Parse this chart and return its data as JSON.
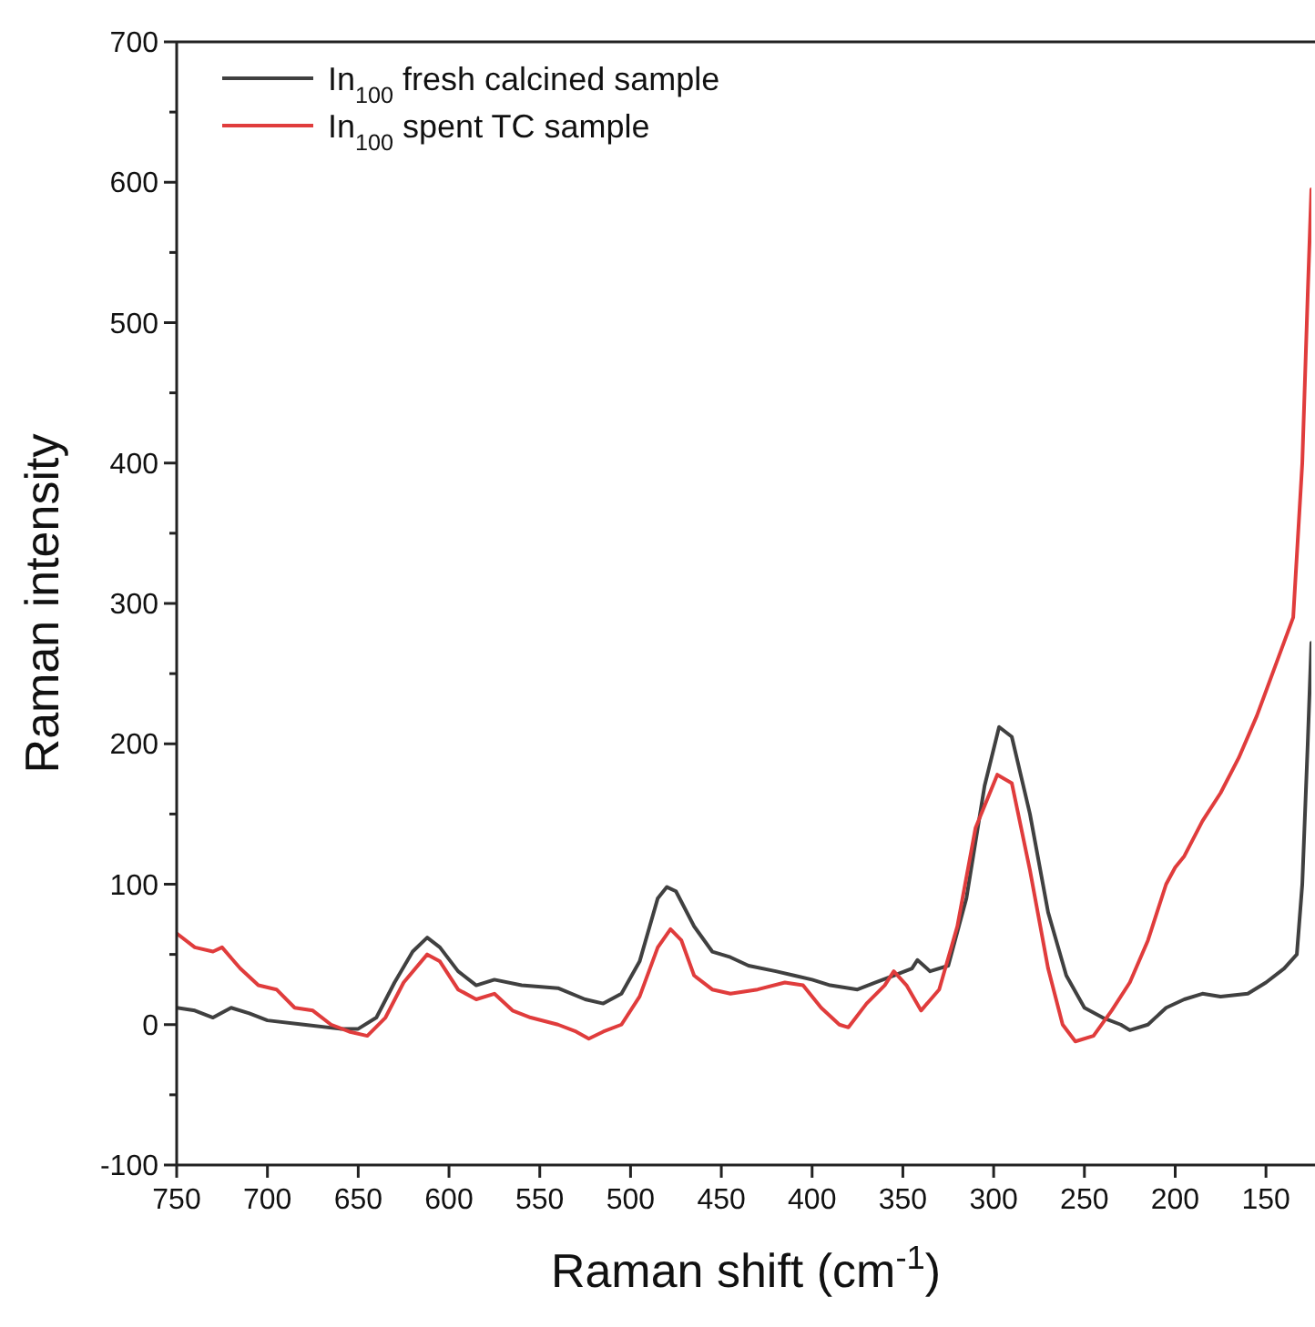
{
  "chart_data": {
    "type": "line",
    "xlabel": "Raman shift (cm$^{-1}$)",
    "ylabel": "Raman intensity",
    "xlim": [
      750,
      125
    ],
    "xticks": [
      750,
      700,
      650,
      600,
      550,
      500,
      450,
      400,
      350,
      300,
      250,
      200,
      150
    ],
    "ylim": [
      -100,
      700
    ],
    "yticks": [
      -100,
      {
        "value": -50,
        "label": null
      },
      0,
      {
        "value": 50,
        "label": null
      },
      100,
      {
        "value": 150,
        "label": null
      },
      200,
      {
        "value": 250,
        "label": null
      },
      300,
      {
        "value": 350,
        "label": null
      },
      400,
      {
        "value": 450,
        "label": null
      },
      500,
      {
        "value": 550,
        "label": null
      },
      600,
      {
        "value": 650,
        "label": null
      },
      700
    ],
    "legend": "top left",
    "grid": false,
    "marker": "none",
    "line_style": "solid",
    "series": [
      {
        "name": "In$_{100}$ fresh calcined sample",
        "color": "#404040",
        "x": [
          750,
          740,
          730,
          720,
          710,
          700,
          680,
          660,
          650,
          640,
          630,
          620,
          612,
          605,
          595,
          585,
          575,
          560,
          540,
          525,
          515,
          505,
          495,
          485,
          480,
          475,
          465,
          455,
          445,
          435,
          420,
          410,
          400,
          390,
          375,
          365,
          355,
          345,
          342,
          335,
          325,
          315,
          305,
          297,
          290,
          280,
          270,
          260,
          250,
          240,
          230,
          225,
          215,
          205,
          195,
          185,
          175,
          160,
          150,
          140,
          133,
          130,
          127,
          125
        ],
        "values": [
          12,
          10,
          5,
          12,
          8,
          3,
          0,
          -3,
          -3,
          5,
          30,
          52,
          62,
          55,
          38,
          28,
          32,
          28,
          26,
          18,
          15,
          22,
          45,
          90,
          98,
          95,
          70,
          52,
          48,
          42,
          38,
          35,
          32,
          28,
          25,
          30,
          35,
          40,
          46,
          38,
          42,
          90,
          170,
          212,
          205,
          150,
          80,
          35,
          12,
          5,
          0,
          -4,
          0,
          12,
          18,
          22,
          20,
          22,
          30,
          40,
          50,
          100,
          200,
          272
        ]
      },
      {
        "name": "In$_{100}$ spent TC sample",
        "color": "#e03c3c",
        "x": [
          750,
          740,
          730,
          725,
          715,
          705,
          695,
          685,
          675,
          665,
          655,
          645,
          635,
          625,
          612,
          605,
          595,
          585,
          575,
          565,
          555,
          540,
          530,
          523,
          515,
          505,
          495,
          485,
          478,
          472,
          465,
          455,
          445,
          430,
          415,
          405,
          395,
          385,
          380,
          370,
          360,
          355,
          348,
          340,
          330,
          320,
          310,
          298,
          290,
          280,
          270,
          262,
          255,
          245,
          235,
          225,
          215,
          205,
          200,
          195,
          185,
          175,
          165,
          155,
          145,
          135,
          130,
          127,
          125
        ],
        "values": [
          65,
          55,
          52,
          55,
          40,
          28,
          25,
          12,
          10,
          0,
          -5,
          -8,
          5,
          30,
          50,
          45,
          25,
          18,
          22,
          10,
          5,
          0,
          -5,
          -10,
          -5,
          0,
          20,
          55,
          68,
          60,
          35,
          25,
          22,
          25,
          30,
          28,
          12,
          0,
          -2,
          15,
          28,
          38,
          28,
          10,
          25,
          70,
          140,
          178,
          172,
          110,
          40,
          0,
          -12,
          -8,
          10,
          30,
          60,
          100,
          112,
          120,
          145,
          165,
          190,
          220,
          255,
          290,
          400,
          520,
          595
        ]
      }
    ]
  }
}
